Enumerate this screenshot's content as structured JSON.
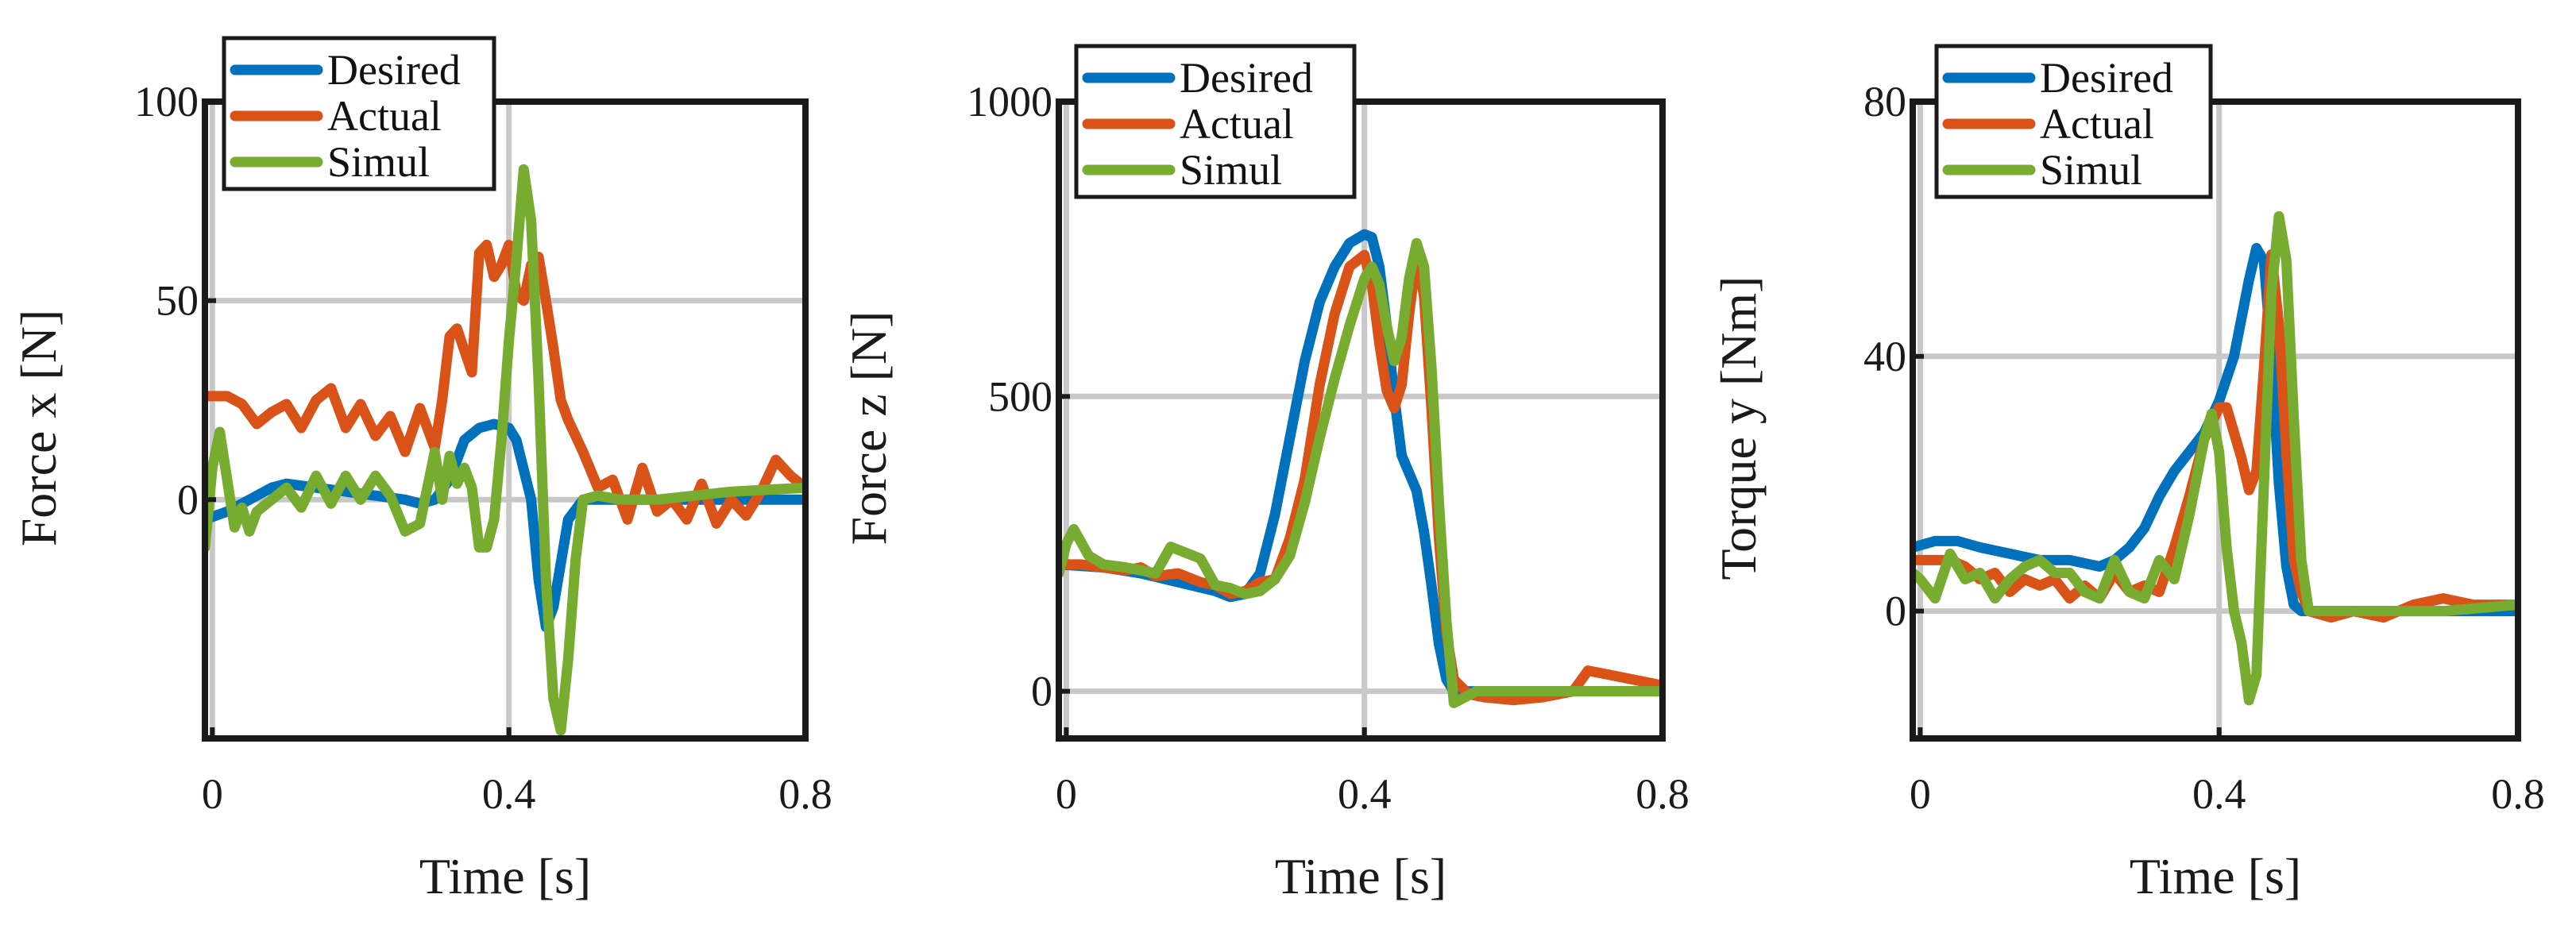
{
  "colors": {
    "desired": "#0072BD",
    "actual": "#D95319",
    "simul": "#77AC30",
    "grid": "#c8c8c8",
    "axes": "#1a1a1a"
  },
  "chart_data": [
    {
      "type": "line",
      "xlabel": "Time [s]",
      "ylabel": "Force x [N]",
      "xlim": [
        -0.01,
        0.8
      ],
      "ylim": [
        -60,
        100
      ],
      "xticks": [
        0,
        0.4,
        0.8
      ],
      "xtick_labels": [
        "0",
        "0.4",
        "0.8"
      ],
      "yticks": [
        0,
        50,
        100
      ],
      "ytick_labels": [
        "0",
        "50",
        "100"
      ],
      "legend": [
        "Desired",
        "Actual",
        "Simul"
      ],
      "series": [
        {
          "name": "Desired",
          "color": "#0072BD",
          "x": [
            -0.01,
            0.02,
            0.05,
            0.08,
            0.1,
            0.14,
            0.18,
            0.22,
            0.26,
            0.28,
            0.3,
            0.32,
            0.34,
            0.36,
            0.38,
            0.4,
            0.41,
            0.43,
            0.44,
            0.45,
            0.46,
            0.48,
            0.5,
            0.55,
            0.6,
            0.7,
            0.8
          ],
          "y": [
            -5,
            -3,
            0,
            3,
            4,
            3,
            2,
            1,
            0,
            -1,
            0,
            5,
            15,
            18,
            19,
            18,
            15,
            0,
            -20,
            -32,
            -27,
            -5,
            0,
            0,
            0,
            0,
            0
          ]
        },
        {
          "name": "Actual",
          "color": "#D95319",
          "x": [
            -0.01,
            0.02,
            0.04,
            0.06,
            0.08,
            0.1,
            0.12,
            0.14,
            0.16,
            0.18,
            0.2,
            0.22,
            0.24,
            0.26,
            0.28,
            0.3,
            0.31,
            0.32,
            0.33,
            0.35,
            0.36,
            0.37,
            0.38,
            0.39,
            0.4,
            0.41,
            0.42,
            0.43,
            0.44,
            0.45,
            0.46,
            0.47,
            0.48,
            0.5,
            0.52,
            0.54,
            0.56,
            0.58,
            0.6,
            0.62,
            0.64,
            0.66,
            0.68,
            0.7,
            0.72,
            0.74,
            0.76,
            0.78,
            0.8
          ],
          "y": [
            26,
            26,
            24,
            19,
            22,
            24,
            18,
            25,
            28,
            18,
            24,
            16,
            21,
            12,
            23,
            13,
            25,
            41,
            43,
            32,
            62,
            64,
            56,
            59,
            64,
            52,
            50,
            59,
            61,
            50,
            38,
            25,
            20,
            12,
            3,
            5,
            -5,
            8,
            -3,
            0,
            -5,
            4,
            -6,
            0,
            -4,
            2,
            10,
            6,
            3
          ]
        },
        {
          "name": "Simul",
          "color": "#77AC30",
          "x": [
            -0.01,
            0.0,
            0.01,
            0.02,
            0.03,
            0.04,
            0.05,
            0.06,
            0.08,
            0.1,
            0.12,
            0.14,
            0.16,
            0.18,
            0.2,
            0.22,
            0.24,
            0.26,
            0.28,
            0.29,
            0.3,
            0.31,
            0.32,
            0.33,
            0.34,
            0.35,
            0.36,
            0.37,
            0.38,
            0.39,
            0.4,
            0.41,
            0.42,
            0.43,
            0.44,
            0.45,
            0.46,
            0.47,
            0.48,
            0.49,
            0.5,
            0.52,
            0.55,
            0.6,
            0.7,
            0.8
          ],
          "y": [
            -12,
            8,
            17,
            5,
            -7,
            -2,
            -8,
            -3,
            0,
            3,
            -2,
            6,
            -1,
            6,
            0,
            6,
            1,
            -8,
            -6,
            3,
            12,
            0,
            11,
            4,
            8,
            3,
            -12,
            -12,
            -5,
            15,
            40,
            60,
            83,
            70,
            30,
            -20,
            -50,
            -58,
            -40,
            -15,
            0,
            1,
            0,
            0,
            2,
            3
          ]
        }
      ]
    },
    {
      "type": "line",
      "xlabel": "Time [s]",
      "ylabel": "Force z [N]",
      "xlim": [
        -0.01,
        0.8
      ],
      "ylim": [
        -80,
        1000
      ],
      "xticks": [
        0,
        0.4,
        0.8
      ],
      "xtick_labels": [
        "0",
        "0.4",
        "0.8"
      ],
      "yticks": [
        0,
        500,
        1000
      ],
      "ytick_labels": [
        "0",
        "500",
        "1000"
      ],
      "legend": [
        "Desired",
        "Actual",
        "Simul"
      ],
      "series": [
        {
          "name": "Desired",
          "color": "#0072BD",
          "x": [
            -0.01,
            0.05,
            0.1,
            0.15,
            0.2,
            0.22,
            0.24,
            0.26,
            0.28,
            0.3,
            0.32,
            0.34,
            0.36,
            0.38,
            0.4,
            0.41,
            0.42,
            0.43,
            0.44,
            0.45,
            0.46,
            0.47,
            0.48,
            0.49,
            0.5,
            0.51,
            0.52,
            0.55,
            0.6,
            0.7,
            0.8
          ],
          "y": [
            215,
            210,
            200,
            185,
            170,
            160,
            165,
            200,
            300,
            430,
            560,
            660,
            720,
            760,
            775,
            770,
            720,
            620,
            500,
            400,
            370,
            340,
            270,
            180,
            80,
            20,
            0,
            0,
            0,
            0,
            0
          ]
        },
        {
          "name": "Actual",
          "color": "#D95319",
          "x": [
            -0.01,
            0.02,
            0.05,
            0.08,
            0.1,
            0.12,
            0.15,
            0.18,
            0.2,
            0.22,
            0.24,
            0.26,
            0.28,
            0.3,
            0.32,
            0.34,
            0.36,
            0.38,
            0.4,
            0.41,
            0.42,
            0.43,
            0.44,
            0.45,
            0.46,
            0.47,
            0.48,
            0.49,
            0.5,
            0.51,
            0.52,
            0.54,
            0.56,
            0.6,
            0.64,
            0.68,
            0.7,
            0.74,
            0.8
          ],
          "y": [
            215,
            215,
            210,
            205,
            210,
            195,
            200,
            185,
            180,
            165,
            170,
            185,
            190,
            260,
            360,
            520,
            640,
            720,
            740,
            690,
            590,
            510,
            480,
            520,
            640,
            740,
            670,
            480,
            260,
            100,
            20,
            -5,
            -10,
            -15,
            -10,
            0,
            35,
            25,
            10
          ]
        },
        {
          "name": "Simul",
          "color": "#77AC30",
          "x": [
            -0.01,
            0.0,
            0.01,
            0.03,
            0.05,
            0.08,
            0.1,
            0.12,
            0.14,
            0.16,
            0.18,
            0.2,
            0.22,
            0.24,
            0.26,
            0.28,
            0.3,
            0.32,
            0.34,
            0.36,
            0.38,
            0.4,
            0.41,
            0.42,
            0.43,
            0.44,
            0.45,
            0.46,
            0.47,
            0.48,
            0.49,
            0.5,
            0.51,
            0.52,
            0.55,
            0.6,
            0.7,
            0.8
          ],
          "y": [
            200,
            250,
            275,
            230,
            215,
            210,
            205,
            200,
            245,
            235,
            225,
            180,
            175,
            165,
            170,
            190,
            230,
            320,
            430,
            530,
            620,
            700,
            720,
            690,
            620,
            560,
            600,
            700,
            760,
            720,
            550,
            320,
            120,
            -20,
            0,
            0,
            0,
            0
          ]
        }
      ]
    },
    {
      "type": "line",
      "xlabel": "Time [s]",
      "ylabel": "Torque y [Nm]",
      "xlim": [
        -0.01,
        0.8
      ],
      "ylim": [
        -20,
        80
      ],
      "xticks": [
        0,
        0.4,
        0.8
      ],
      "xtick_labels": [
        "0",
        "0.4",
        "0.8"
      ],
      "yticks": [
        0,
        40,
        80
      ],
      "ytick_labels": [
        "0",
        "40",
        "80"
      ],
      "legend": [
        "Desired",
        "Actual",
        "Simul"
      ],
      "series": [
        {
          "name": "Desired",
          "color": "#0072BD",
          "x": [
            -0.01,
            0.02,
            0.05,
            0.08,
            0.12,
            0.16,
            0.2,
            0.24,
            0.26,
            0.28,
            0.3,
            0.32,
            0.34,
            0.36,
            0.38,
            0.4,
            0.42,
            0.44,
            0.45,
            0.46,
            0.47,
            0.48,
            0.49,
            0.5,
            0.51,
            0.52,
            0.55,
            0.6,
            0.7,
            0.8
          ],
          "y": [
            10,
            11,
            11,
            10,
            9,
            8,
            8,
            7,
            8,
            10,
            13,
            18,
            22,
            25,
            28,
            33,
            40,
            52,
            57,
            55,
            40,
            20,
            7,
            1,
            0,
            0,
            0,
            0,
            0,
            0
          ]
        },
        {
          "name": "Actual",
          "color": "#D95319",
          "x": [
            -0.01,
            0.02,
            0.04,
            0.06,
            0.08,
            0.1,
            0.12,
            0.14,
            0.16,
            0.18,
            0.2,
            0.22,
            0.24,
            0.26,
            0.28,
            0.3,
            0.32,
            0.34,
            0.36,
            0.38,
            0.4,
            0.41,
            0.42,
            0.43,
            0.44,
            0.45,
            0.46,
            0.47,
            0.48,
            0.49,
            0.5,
            0.51,
            0.52,
            0.55,
            0.58,
            0.62,
            0.66,
            0.7,
            0.74,
            0.8
          ],
          "y": [
            8,
            8,
            8,
            7,
            5,
            6,
            3,
            5,
            4,
            5,
            2,
            4,
            2,
            6,
            3,
            4,
            3,
            10,
            18,
            27,
            32,
            32,
            28,
            24,
            19,
            22,
            38,
            56,
            45,
            25,
            8,
            3,
            0,
            -1,
            0,
            -1,
            1,
            2,
            1,
            1
          ]
        },
        {
          "name": "Simul",
          "color": "#77AC30",
          "x": [
            -0.01,
            0.0,
            0.02,
            0.04,
            0.06,
            0.08,
            0.1,
            0.12,
            0.14,
            0.16,
            0.18,
            0.2,
            0.22,
            0.24,
            0.26,
            0.28,
            0.3,
            0.32,
            0.34,
            0.36,
            0.38,
            0.39,
            0.4,
            0.41,
            0.42,
            0.43,
            0.44,
            0.45,
            0.46,
            0.47,
            0.48,
            0.49,
            0.5,
            0.51,
            0.52,
            0.55,
            0.6,
            0.7,
            0.8
          ],
          "y": [
            6,
            5,
            2,
            9,
            5,
            6,
            2,
            5,
            7,
            8,
            6,
            6,
            3,
            2,
            8,
            3,
            2,
            8,
            5,
            15,
            27,
            31,
            25,
            10,
            0,
            -5,
            -14,
            -10,
            20,
            50,
            62,
            55,
            30,
            8,
            0,
            0,
            0,
            0,
            1
          ]
        }
      ]
    }
  ]
}
